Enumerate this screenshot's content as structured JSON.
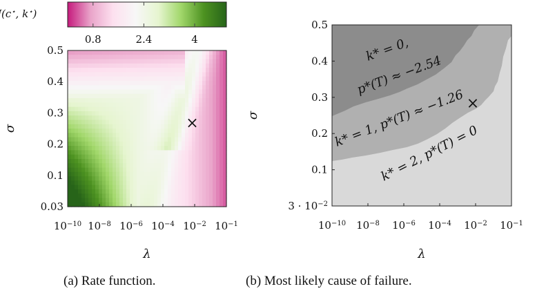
{
  "chart_data": [
    {
      "id": "a",
      "type": "heatmap",
      "caption": "(a) Rate function.",
      "xlabel": "λ",
      "ylabel": "σ",
      "x_scale": "log",
      "xlim": [
        1e-10,
        0.1
      ],
      "x_ticks": [
        {
          "base": "10",
          "exp": "−10"
        },
        {
          "base": "10",
          "exp": "−8"
        },
        {
          "base": "10",
          "exp": "−6"
        },
        {
          "base": "10",
          "exp": "−4"
        },
        {
          "base": "10",
          "exp": "−2"
        },
        {
          "base": "10",
          "exp": "−1"
        }
      ],
      "ylim": [
        0.03,
        0.5
      ],
      "y_ticks": [
        "0.5",
        "0.4",
        "0.3",
        "0.2",
        "0.1",
        "0.03"
      ],
      "colorbar": {
        "label": "J(c*, k*)",
        "range": [
          0,
          5
        ],
        "ticks": [
          "0.8",
          "2.4",
          "4"
        ],
        "colors": [
          "#c51b7d",
          "#e9a3c9",
          "#fde0ef",
          "#f7f7f7",
          "#e6f5d0",
          "#a1d76a",
          "#4d9221",
          "#276419"
        ]
      },
      "marker": {
        "symbol": "×",
        "lambda": 0.007,
        "sigma": 0.27
      }
    },
    {
      "id": "b",
      "type": "area",
      "caption": "(b) Most likely cause of failure.",
      "xlabel": "λ",
      "ylabel": "σ",
      "x_scale": "log",
      "xlim": [
        1e-10,
        0.1
      ],
      "x_ticks": [
        {
          "base": "10",
          "exp": "−10"
        },
        {
          "base": "10",
          "exp": "−8"
        },
        {
          "base": "10",
          "exp": "−6"
        },
        {
          "base": "10",
          "exp": "−4"
        },
        {
          "base": "10",
          "exp": "−2"
        },
        {
          "base": "10",
          "exp": "−1"
        }
      ],
      "ylim": [
        0.03,
        0.5
      ],
      "y_ticks": [
        {
          "text": "0.5"
        },
        {
          "text": "0.4"
        },
        {
          "text": "0.3"
        },
        {
          "text": "0.2"
        },
        {
          "text": "0.1"
        },
        {
          "text": "3 · 10",
          "exp": "−2"
        }
      ],
      "regions": [
        {
          "name": "k* = 0,",
          "line2": "p*(T) ≈ −2.54",
          "color": "#8c8c8c"
        },
        {
          "name": "k* = 1, p*(T) ≈ −1.26",
          "color": "#b0b0b0"
        },
        {
          "name": "k* = 2, p*(T) = 0",
          "color": "#d9d9d9"
        }
      ],
      "marker": {
        "symbol": "×",
        "lambda": 0.007,
        "sigma": 0.285
      }
    }
  ]
}
